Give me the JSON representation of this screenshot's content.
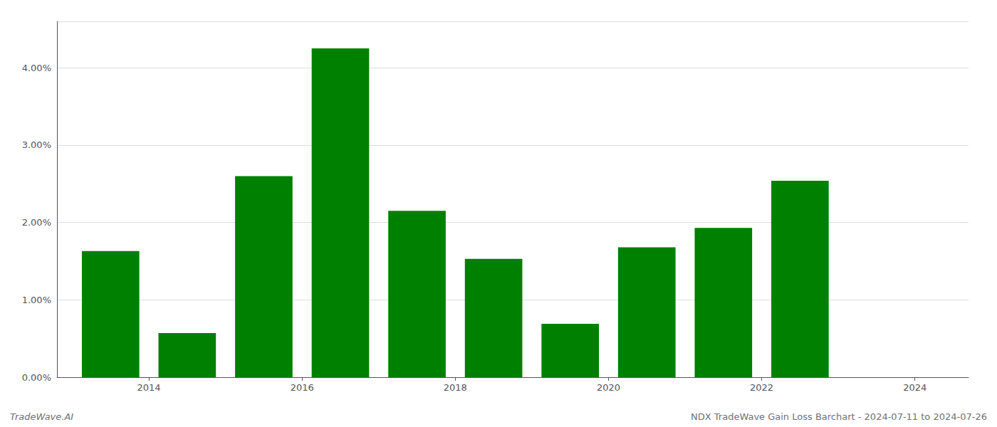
{
  "chart_data": {
    "type": "bar",
    "x": [
      2014,
      2015,
      2016,
      2017,
      2018,
      2019,
      2020,
      2021,
      2022,
      2023
    ],
    "values": [
      0.0163,
      0.0057,
      0.026,
      0.0425,
      0.0215,
      0.0153,
      0.0069,
      0.0168,
      0.0193,
      0.0254
    ],
    "color": "#008000",
    "xlim": [
      2013.3,
      2025.2
    ],
    "xticks": [
      {
        "value": 2014.5,
        "label": "2014"
      },
      {
        "value": 2016.5,
        "label": "2016"
      },
      {
        "value": 2018.5,
        "label": "2018"
      },
      {
        "value": 2020.5,
        "label": "2020"
      },
      {
        "value": 2022.5,
        "label": "2022"
      },
      {
        "value": 2024.5,
        "label": "2024"
      }
    ],
    "ylim": [
      0,
      0.046
    ],
    "yticks": [
      {
        "value": 0,
        "label": "0.00%"
      },
      {
        "value": 0.01,
        "label": "1.00%"
      },
      {
        "value": 0.02,
        "label": "2.00%"
      },
      {
        "value": 0.03,
        "label": "3.00%"
      },
      {
        "value": 0.04,
        "label": "4.00%"
      }
    ],
    "grid": true,
    "annotations": [
      "TradeWave.AI",
      "NDX TradeWave Gain Loss Barchart - 2024-07-11 to 2024-07-26"
    ]
  }
}
